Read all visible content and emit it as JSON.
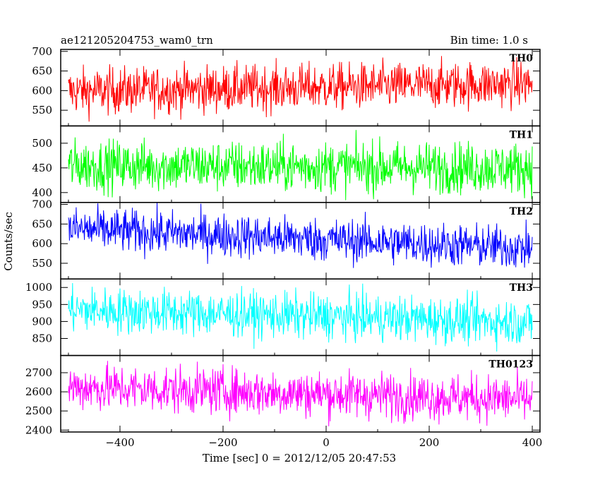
{
  "chart_data": {
    "type": "line",
    "title": "ae121205204753_wam0_trn",
    "subtitle": "Bin time: 1.0 s",
    "xlabel": "Time [sec] 0 = 2012/12/05 20:47:53",
    "ylabel": "Counts/sec",
    "xlim": [
      -515,
      415
    ],
    "x_ticks": [
      -400,
      -200,
      0,
      200,
      400
    ],
    "x_tick_labels": [
      "−400",
      "−200",
      "0",
      "200",
      "400"
    ],
    "x_start": -500,
    "x_end": 400,
    "x_step": 1,
    "grid": false,
    "legend": "none",
    "series": [
      {
        "name": "TH0",
        "color": "#ff0000",
        "ylim": [
          510,
          705
        ],
        "y_ticks": [
          550,
          600,
          650,
          700
        ],
        "mean_start": 598,
        "mean_end": 618,
        "noise": 30,
        "clip_max": 701
      },
      {
        "name": "TH1",
        "color": "#00ff00",
        "ylim": [
          380,
          535
        ],
        "y_ticks": [
          400,
          450,
          500
        ],
        "mean_start": 455,
        "mean_end": 450,
        "noise": 26
      },
      {
        "name": "TH2",
        "color": "#0000ff",
        "ylim": [
          510,
          705
        ],
        "y_ticks": [
          550,
          600,
          650,
          700
        ],
        "mean_start": 638,
        "mean_end": 588,
        "noise": 28
      },
      {
        "name": "TH3",
        "color": "#00ffff",
        "ylim": [
          800,
          1025
        ],
        "y_ticks": [
          850,
          900,
          950,
          1000
        ],
        "mean_start": 935,
        "mean_end": 898,
        "noise": 34
      },
      {
        "name": "TH0123",
        "color": "#ff00ff",
        "ylim": [
          2390,
          2790
        ],
        "y_ticks": [
          2400,
          2500,
          2600,
          2700
        ],
        "mean_start": 2625,
        "mean_end": 2560,
        "noise": 62
      }
    ]
  }
}
